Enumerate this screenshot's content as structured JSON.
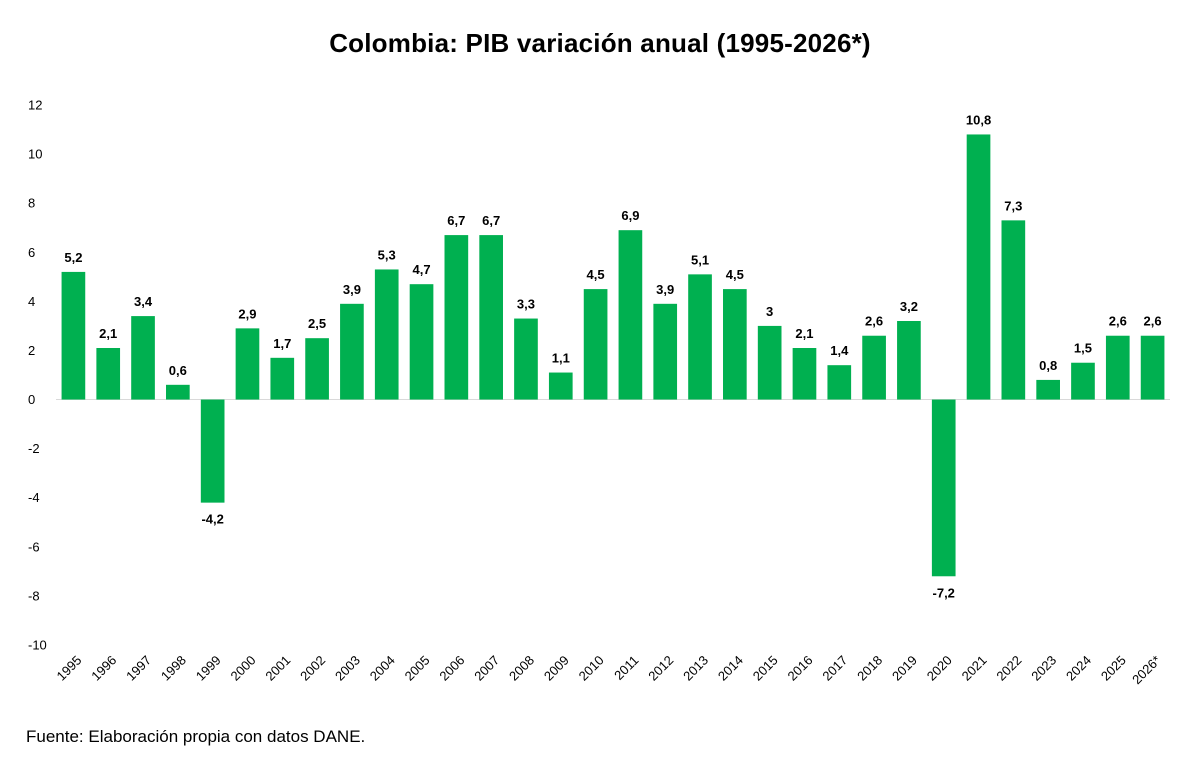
{
  "chart_data": {
    "type": "bar",
    "title": "Colombia: PIB variación anual (1995-2026*)",
    "xlabel": "",
    "ylabel": "",
    "ylim": [
      -10,
      12
    ],
    "yticks": [
      "-10",
      "-8",
      "-6",
      "-4",
      "-2",
      "0",
      "2",
      "4",
      "6",
      "8",
      "10",
      "12"
    ],
    "ytick_values": [
      -10,
      -8,
      -6,
      -4,
      -2,
      0,
      2,
      4,
      6,
      8,
      10,
      12
    ],
    "categories": [
      "1995",
      "1996",
      "1997",
      "1998",
      "1999",
      "2000",
      "2001",
      "2002",
      "2003",
      "2004",
      "2005",
      "2006",
      "2007",
      "2008",
      "2009",
      "2010",
      "2011",
      "2012",
      "2013",
      "2014",
      "2015",
      "2016",
      "2017",
      "2018",
      "2019",
      "2020",
      "2021",
      "2022",
      "2023",
      "2024",
      "2025",
      "2026*"
    ],
    "values": [
      5.2,
      2.1,
      3.4,
      0.6,
      -4.2,
      2.9,
      1.7,
      2.5,
      3.9,
      5.3,
      4.7,
      6.7,
      6.7,
      3.3,
      1.1,
      4.5,
      6.9,
      3.9,
      5.1,
      4.5,
      3,
      2.1,
      1.4,
      2.6,
      3.2,
      -7.2,
      10.8,
      7.3,
      0.8,
      1.5,
      2.6,
      2.6
    ],
    "data_labels": [
      "5,2",
      "2,1",
      "3,4",
      "0,6",
      "-4,2",
      "2,9",
      "1,7",
      "2,5",
      "3,9",
      "5,3",
      "4,7",
      "6,7",
      "6,7",
      "3,3",
      "1,1",
      "4,5",
      "6,9",
      "3,9",
      "5,1",
      "4,5",
      "3",
      "2,1",
      "1,4",
      "2,6",
      "3,2",
      "-7,2",
      "10,8",
      "7,3",
      "0,8",
      "1,5",
      "2,6",
      "2,6"
    ],
    "grid": false,
    "legend": "none",
    "bar_color": "#00b050",
    "zero_line_color": "#d9d9d9"
  },
  "source_note": "Fuente: Elaboración propia con datos DANE."
}
